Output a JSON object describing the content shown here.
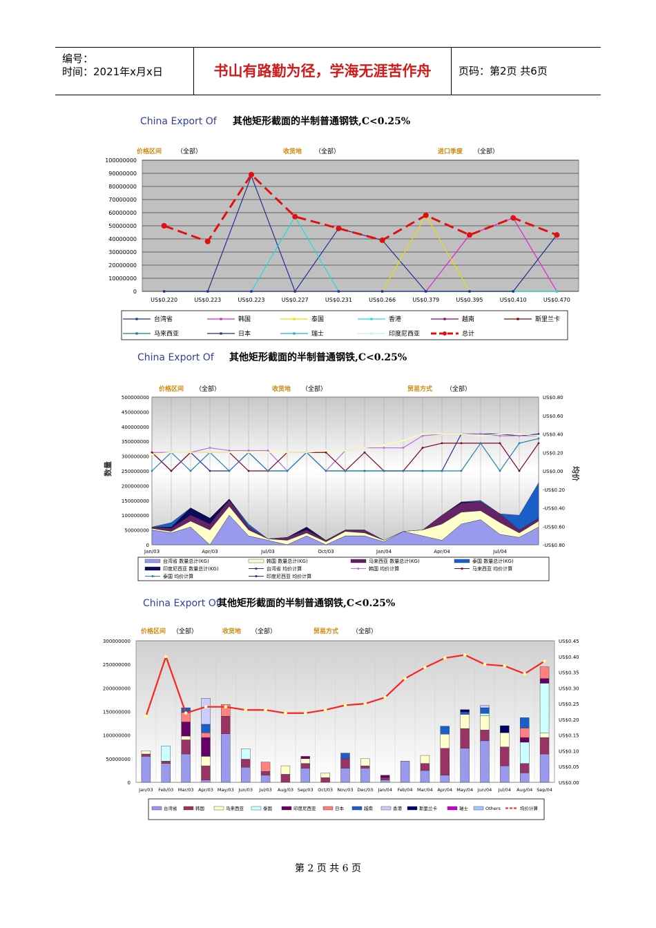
{
  "header": {
    "number_label": "编号：",
    "time_label": "时间：2021年x月x日",
    "motto": "书山有路勤为径，学海无涯苦作舟",
    "page_label": "页码：第2页  共6页"
  },
  "footer": {
    "page_text": "第 2 页 共 6 页"
  },
  "chart1": {
    "title_en": "China Export Of",
    "title_cn": "其他矩形截面的半制普通钢铁,C<0.25%",
    "filters": [
      {
        "label": "价格区间",
        "value": "（全部）"
      },
      {
        "label": "收货地",
        "value": "（全部）"
      },
      {
        "label": "进口季度",
        "value": "（全部）"
      }
    ],
    "y_ticks": [
      "100000000",
      "90000000",
      "80000000",
      "70000000",
      "60000000",
      "50000000",
      "40000000",
      "30000000",
      "20000000",
      "10000000",
      "0"
    ],
    "x_ticks": [
      "US$0.220",
      "US$0.223",
      "US$0.223",
      "US$0.227",
      "US$0.231",
      "US$0.266",
      "US$0.379",
      "US$0.395",
      "US$0.410",
      "US$0.470"
    ],
    "legend": [
      "台湾省",
      "韩国",
      "泰国",
      "香港",
      "越南",
      "斯里兰卡",
      "马来西亚",
      "日本",
      "瑞士",
      "印度尼西亚",
      "总计"
    ]
  },
  "chart2": {
    "title_en": "China Export Of",
    "title_cn": "其他矩形截面的半制普通钢铁,C<0.25%",
    "filters": [
      {
        "label": "价格区间",
        "value": "（全部）"
      },
      {
        "label": "收货地",
        "value": "（全部）"
      },
      {
        "label": "贸易方式",
        "value": "（全部）"
      }
    ],
    "y_left_ticks": [
      "500000000",
      "450000000",
      "400000000",
      "350000000",
      "300000000",
      "250000000",
      "200000000",
      "150000000",
      "100000000",
      "50000000",
      "0"
    ],
    "y_right_ticks": [
      "US$0.80",
      "US$0.60",
      "US$0.40",
      "US$0.20",
      "US$0.00",
      "-US$0.20",
      "-US$0.40",
      "-US$0.60",
      "-US$0.80"
    ],
    "y_left_label": "数量",
    "y_right_label": "均价",
    "x_ticks": [
      "Jan/03",
      "Apr/03",
      "Jul/03",
      "Oct/03",
      "Jan/04",
      "Apr/04",
      "Jul/04"
    ],
    "legend": [
      "台湾省 数量总计(KG)",
      "韩国 数量总计(KG)",
      "马来西亚 数量总计(KG)",
      "泰国 数量总计(KG)",
      "印度尼西亚 数量总计(KG)",
      "台湾省 均价计算",
      "韩国 均价计算",
      "马来西亚 均价计算",
      "泰国 均价计算",
      "印度尼西亚 均价计算"
    ]
  },
  "chart3": {
    "title_en": "China Export Of",
    "title_cn": "其他矩形截面的半制普通钢铁,C<0.25%",
    "filters": [
      {
        "label": "价格区间",
        "value": "（全部）"
      },
      {
        "label": "收货地",
        "value": "（全部）"
      },
      {
        "label": "贸易方式",
        "value": "（全部）"
      }
    ],
    "y_left_ticks": [
      "300000000",
      "250000000",
      "200000000",
      "150000000",
      "100000000",
      "50000000",
      "0"
    ],
    "y_right_ticks": [
      "US$0.45",
      "US$0.40",
      "US$0.35",
      "US$0.30",
      "US$0.25",
      "US$0.20",
      "US$0.15",
      "US$0.10",
      "US$0.05",
      "US$0.00"
    ],
    "x_ticks": [
      "Jan/03",
      "Feb/03",
      "Mar/03",
      "Apr/03",
      "May/03",
      "Jun/03",
      "Jul/03",
      "Aug/03",
      "Sep/03",
      "Oct/03",
      "Nov/03",
      "Dec/03",
      "Jan/04",
      "Feb/04",
      "Mar/04",
      "Apr/04",
      "May/04",
      "Jun/04",
      "Jul/04",
      "Aug/04",
      "Sep/04"
    ],
    "legend": [
      "台湾省",
      "韩国",
      "马来西亚",
      "泰国",
      "印度尼西亚",
      "日本",
      "越南",
      "香港",
      "斯里兰卡",
      "瑞士",
      "Others",
      "均价计算"
    ]
  },
  "chart_data": [
    {
      "type": "line",
      "title": "China Export Of 其他矩形截面的半制普通钢铁,C<0.25%",
      "categories": [
        "US$0.220",
        "US$0.223",
        "US$0.223",
        "US$0.227",
        "US$0.231",
        "US$0.266",
        "US$0.379",
        "US$0.395",
        "US$0.410",
        "US$0.470"
      ],
      "ylim": [
        0,
        100000000
      ],
      "series": [
        {
          "name": "台湾省",
          "color": "#1f2f8f",
          "values": [
            0,
            0,
            88000000,
            0,
            48000000,
            39000000,
            0,
            0,
            0,
            0
          ]
        },
        {
          "name": "韩国",
          "color": "#e020d0",
          "values": [
            0,
            0,
            0,
            0,
            0,
            0,
            0,
            43000000,
            56000000,
            0
          ]
        },
        {
          "name": "泰国",
          "color": "#e8e000",
          "values": [
            0,
            0,
            0,
            0,
            0,
            0,
            58000000,
            0,
            0,
            0
          ]
        },
        {
          "name": "香港",
          "color": "#20d8e0",
          "values": [
            0,
            0,
            0,
            57000000,
            0,
            0,
            0,
            0,
            0,
            0
          ]
        },
        {
          "name": "日本",
          "color": "#1f2f8f",
          "values": [
            0,
            0,
            0,
            0,
            0,
            0,
            0,
            0,
            0,
            43000000
          ]
        },
        {
          "name": "总计",
          "color": "#e01010",
          "values": [
            50000000,
            38000000,
            89000000,
            57000000,
            48000000,
            39000000,
            58000000,
            43000000,
            56000000,
            43000000
          ]
        }
      ]
    },
    {
      "type": "area",
      "title": "China Export Of 其他矩形截面的半制普通钢铁,C<0.25%",
      "categories": [
        "Jan/03",
        "Feb/03",
        "Mar/03",
        "Apr/03",
        "May/03",
        "Jun/03",
        "Jul/03",
        "Aug/03",
        "Sep/03",
        "Oct/03",
        "Nov/03",
        "Dec/03",
        "Jan/04",
        "Feb/04",
        "Mar/04",
        "Apr/04",
        "May/04",
        "Jun/04",
        "Jul/04",
        "Aug/04",
        "Sep/04"
      ],
      "ylim": [
        0,
        500000000
      ],
      "y2lim": [
        -0.8,
        0.8
      ],
      "series": [
        {
          "name": "台湾省 数量总计(KG)",
          "color": "#9999ee",
          "values": [
            50000000,
            40000000,
            60000000,
            0,
            100000000,
            30000000,
            15000000,
            0,
            30000000,
            0,
            30000000,
            30000000,
            10000000,
            45000000,
            30000000,
            15000000,
            70000000,
            85000000,
            35000000,
            25000000,
            60000000
          ]
        },
        {
          "name": "韩国 数量总计(KG)",
          "color": "#ffffcc",
          "values": [
            5000000,
            5000000,
            20000000,
            50000000,
            30000000,
            20000000,
            5000000,
            15000000,
            10000000,
            10000000,
            15000000,
            10000000,
            5000000,
            0,
            20000000,
            55000000,
            40000000,
            30000000,
            40000000,
            15000000,
            20000000
          ]
        },
        {
          "name": "马来西亚 数量总计(KG)",
          "color": "#662266",
          "values": [
            5000000,
            10000000,
            20000000,
            20000000,
            20000000,
            10000000,
            0,
            10000000,
            10000000,
            5000000,
            5000000,
            10000000,
            0,
            0,
            0,
            30000000,
            30000000,
            30000000,
            30000000,
            10000000,
            10000000
          ]
        },
        {
          "name": "印度尼西亚 数量总计(KG)",
          "color": "#0b0b5a",
          "values": [
            0,
            5000000,
            25000000,
            20000000,
            5000000,
            0,
            0,
            0,
            10000000,
            0,
            0,
            0,
            0,
            0,
            0,
            0,
            5000000,
            0,
            0,
            0,
            0
          ]
        },
        {
          "name": "泰国 数量总计(KG)",
          "color": "#1a5fc8",
          "values": [
            0,
            15000000,
            0,
            0,
            0,
            10000000,
            0,
            0,
            0,
            0,
            0,
            0,
            0,
            0,
            0,
            0,
            0,
            5000000,
            0,
            50000000,
            120000000
          ]
        },
        {
          "name": "台湾省 均价计算",
          "color": "#1f2f8f",
          "values": [
            0.2,
            0.0,
            0.2,
            0.0,
            0.0,
            0.2,
            0.0,
            0.0,
            0.2,
            0.0,
            0.0,
            0.0,
            0.0,
            0.0,
            0.0,
            0.0,
            0.4,
            0.4,
            0.4,
            0.38,
            0.4
          ]
        },
        {
          "name": "韩国 均价计算",
          "color": "#b070e0",
          "values": [
            0.2,
            0.2,
            0.2,
            0.25,
            0.22,
            0.22,
            0.22,
            0.0,
            0.2,
            0.0,
            0.22,
            0.25,
            0.25,
            0.25,
            0.38,
            0.4,
            0.4,
            0.4,
            0.38,
            0.38,
            0.38
          ]
        },
        {
          "name": "马来西亚 均价计算",
          "color": "#800020",
          "values": [
            0.2,
            0.0,
            0.2,
            0.2,
            0.2,
            0.0,
            0.0,
            0.2,
            0.2,
            0.2,
            0.0,
            0.2,
            0.0,
            0.0,
            0.25,
            0.3,
            0.3,
            0.3,
            0.3,
            0.0,
            0.3
          ]
        },
        {
          "name": "泰国 均价计算",
          "color": "#2080b0",
          "values": [
            0.0,
            0.2,
            0.0,
            0.2,
            0.0,
            0.2,
            0.0,
            0.0,
            0.2,
            0.0,
            0.0,
            0.0,
            0.0,
            0.0,
            0.0,
            0.0,
            0.0,
            0.3,
            0.0,
            0.3,
            0.35
          ]
        },
        {
          "name": "印度尼西亚 均价计算",
          "color": "#ffffaa",
          "values": [
            0.18,
            0.2,
            0.2,
            0.2,
            0.2,
            0.2,
            0.2,
            0.2,
            0.2,
            0.22,
            0.22,
            0.25,
            0.28,
            0.33,
            0.4,
            0.4,
            0.4,
            0.38,
            0.4,
            0.4,
            0.38
          ]
        }
      ]
    },
    {
      "type": "bar",
      "title": "China Export Of 其他矩形截面的半制普通钢铁,C<0.25%",
      "categories": [
        "Jan/03",
        "Feb/03",
        "Mar/03",
        "Apr/03",
        "May/03",
        "Jun/03",
        "Jul/03",
        "Aug/03",
        "Sep/03",
        "Oct/03",
        "Nov/03",
        "Dec/03",
        "Jan/04",
        "Feb/04",
        "Mar/04",
        "Apr/04",
        "May/04",
        "Jun/04",
        "Jul/04",
        "Aug/04",
        "Sep/04"
      ],
      "ylim": [
        0,
        300000000
      ],
      "y2lim": [
        0,
        0.45
      ],
      "series": [
        {
          "name": "台湾省",
          "color": "#9999ee",
          "values": [
            55000000,
            40000000,
            60000000,
            5000000,
            103000000,
            32000000,
            15000000,
            0,
            30000000,
            0,
            30000000,
            30000000,
            5000000,
            45000000,
            25000000,
            15000000,
            72000000,
            88000000,
            35000000,
            20000000,
            60000000
          ]
        },
        {
          "name": "韩国",
          "color": "#993366",
          "values": [
            5000000,
            5000000,
            30000000,
            30000000,
            37000000,
            17000000,
            8000000,
            17000000,
            10000000,
            10000000,
            20000000,
            5000000,
            5000000,
            0,
            15000000,
            57000000,
            42000000,
            23000000,
            40000000,
            20000000,
            35000000
          ]
        },
        {
          "name": "马来西亚",
          "color": "#ffffcc",
          "values": [
            7000000,
            0,
            8000000,
            20000000,
            0,
            0,
            0,
            18000000,
            10000000,
            10000000,
            0,
            15000000,
            0,
            0,
            17000000,
            30000000,
            30000000,
            30000000,
            30000000,
            0,
            10000000
          ]
        },
        {
          "name": "泰国",
          "color": "#ccffff",
          "values": [
            0,
            32000000,
            0,
            0,
            0,
            22000000,
            0,
            0,
            0,
            0,
            0,
            0,
            0,
            0,
            0,
            0,
            0,
            5000000,
            0,
            45000000,
            105000000
          ]
        },
        {
          "name": "印度尼西亚",
          "color": "#660066",
          "values": [
            0,
            0,
            30000000,
            40000000,
            0,
            0,
            0,
            0,
            5000000,
            0,
            0,
            0,
            5000000,
            0,
            0,
            0,
            0,
            0,
            0,
            10000000,
            10000000
          ]
        },
        {
          "name": "日本",
          "color": "#ff8080",
          "values": [
            0,
            0,
            20000000,
            10000000,
            25000000,
            0,
            20000000,
            0,
            0,
            0,
            0,
            0,
            0,
            0,
            0,
            0,
            0,
            0,
            0,
            20000000,
            25000000
          ]
        },
        {
          "name": "越南",
          "color": "#1a5fc8",
          "values": [
            0,
            0,
            10000000,
            18000000,
            0,
            0,
            0,
            0,
            0,
            0,
            12000000,
            0,
            0,
            0,
            0,
            17000000,
            5000000,
            12000000,
            0,
            22000000,
            0
          ]
        },
        {
          "name": "香港",
          "color": "#ccccff",
          "values": [
            0,
            0,
            0,
            55000000,
            0,
            0,
            0,
            0,
            0,
            0,
            0,
            0,
            0,
            0,
            0,
            0,
            0,
            5000000,
            0,
            0,
            0
          ]
        },
        {
          "name": "斯里兰卡",
          "color": "#000066",
          "values": [
            0,
            0,
            0,
            0,
            0,
            0,
            0,
            0,
            0,
            0,
            0,
            0,
            0,
            0,
            0,
            0,
            5000000,
            0,
            15000000,
            0,
            0
          ]
        },
        {
          "name": "均价计算",
          "color": "#ff2020",
          "values": [
            0.21,
            0.4,
            0.22,
            0.24,
            0.24,
            0.23,
            0.23,
            0.22,
            0.22,
            0.23,
            0.245,
            0.25,
            0.27,
            0.33,
            0.365,
            0.395,
            0.405,
            0.375,
            0.37,
            0.345,
            0.385
          ]
        }
      ]
    }
  ]
}
